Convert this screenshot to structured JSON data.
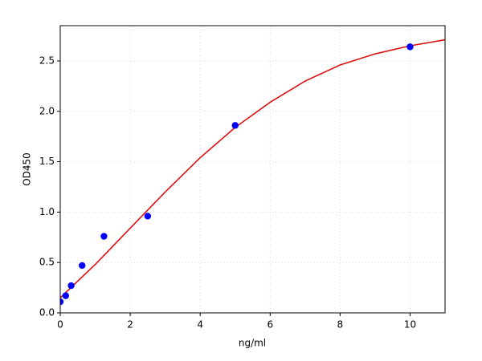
{
  "chart_data": {
    "type": "scatter",
    "x_label": "ng/ml",
    "y_label": "OD450",
    "points": {
      "x": [
        0,
        0.156,
        0.3125,
        0.625,
        1.25,
        2.5,
        5,
        10
      ],
      "y": [
        0.11,
        0.17,
        0.27,
        0.47,
        0.76,
        0.96,
        1.86,
        2.64
      ],
      "color": "#0000ff"
    },
    "curve": {
      "x": [
        0,
        1,
        2,
        3,
        4,
        5,
        6,
        7,
        8,
        9,
        10,
        11
      ],
      "y": [
        0.15,
        0.48,
        0.84,
        1.2,
        1.54,
        1.84,
        2.09,
        2.3,
        2.46,
        2.57,
        2.65,
        2.71
      ],
      "color": "#dd1111"
    },
    "xlim": [
      0,
      11
    ],
    "ylim": [
      0,
      2.85
    ],
    "xticks": [
      0,
      2,
      4,
      6,
      8,
      10
    ],
    "yticks": [
      {
        "value": 0,
        "label": "0.0"
      },
      0.5,
      {
        "value": 1,
        "label": "1.0"
      },
      1.5,
      {
        "value": 2,
        "label": "2.0"
      },
      2.5
    ],
    "grid": true
  }
}
